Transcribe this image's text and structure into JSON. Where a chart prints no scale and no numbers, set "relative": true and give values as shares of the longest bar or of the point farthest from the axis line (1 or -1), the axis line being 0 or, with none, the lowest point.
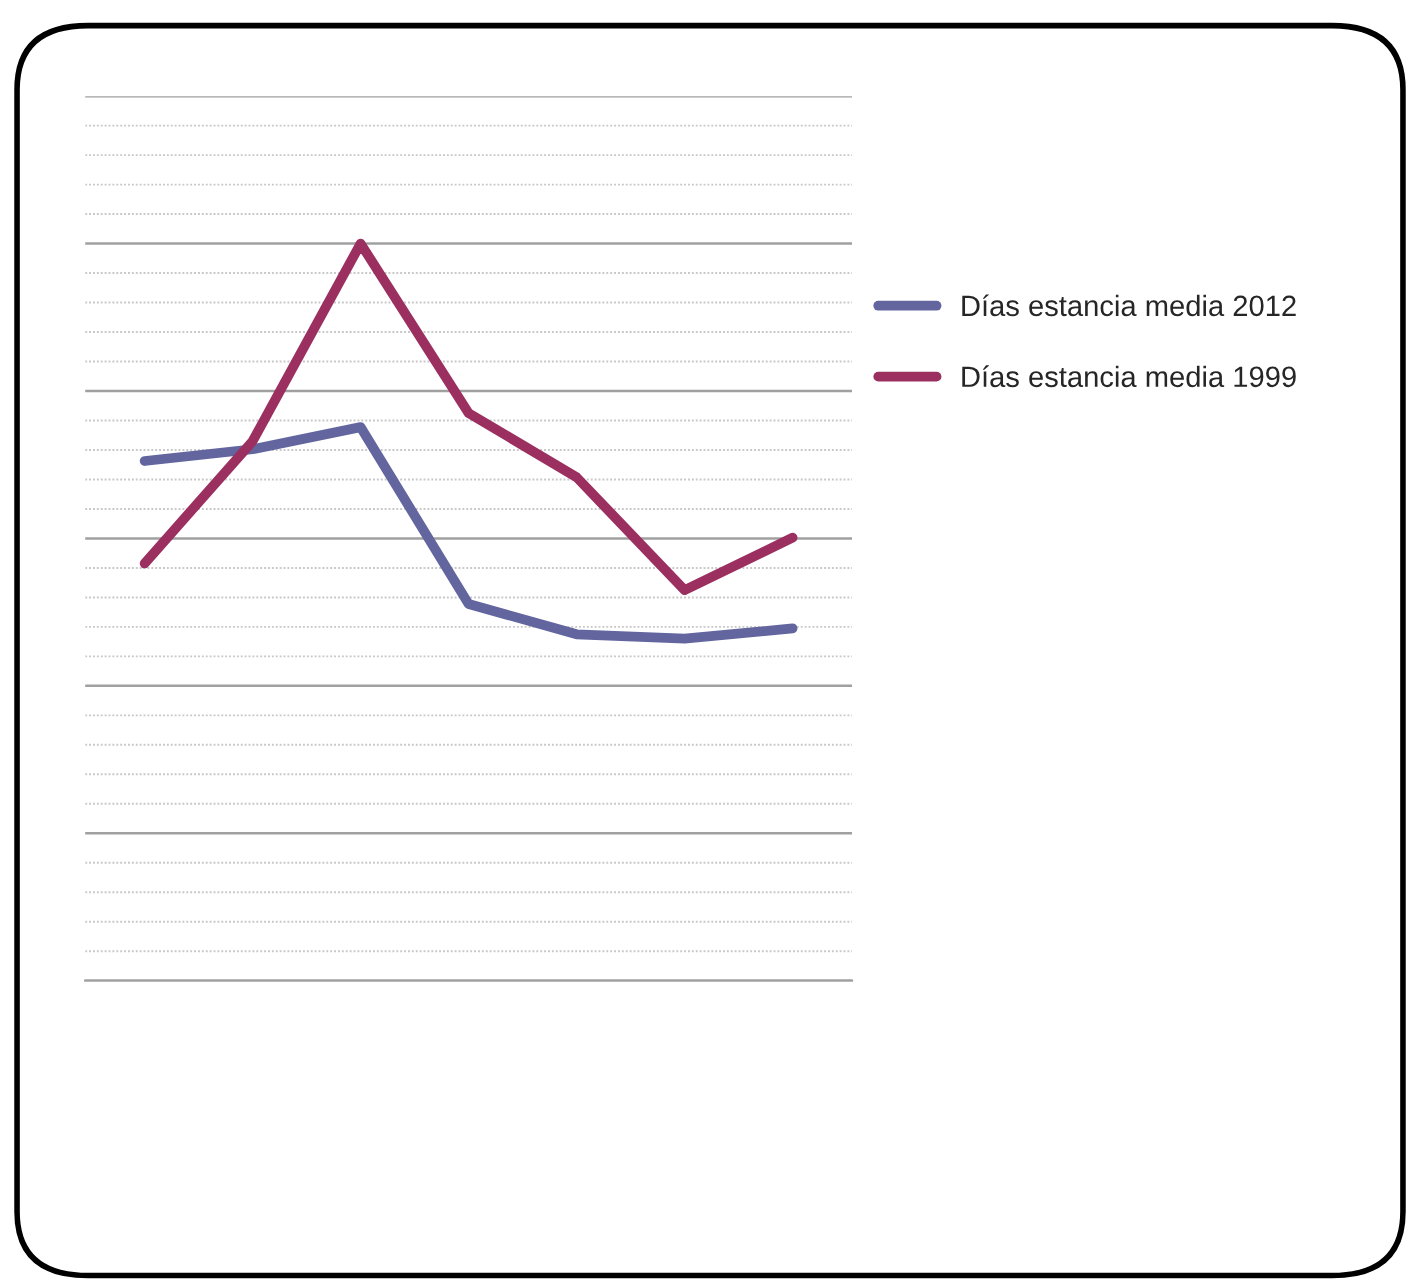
{
  "chart_data": {
    "type": "line",
    "relative": true,
    "categories": [
      null,
      null,
      null,
      null,
      null,
      null,
      null
    ],
    "series": [
      {
        "name": "Días estancia media 2012",
        "color": "#62659e",
        "values": [
          0.705,
          0.721,
          0.751,
          0.511,
          0.47,
          0.464,
          0.478
        ]
      },
      {
        "name": "Días estancia media 1999",
        "color": "#9b2f60",
        "values": [
          0.566,
          0.732,
          1,
          0.77,
          0.683,
          0.53,
          0.601
        ]
      }
    ],
    "grid": "y",
    "legend": "right",
    "line_style": "solid",
    "marker": "none"
  }
}
